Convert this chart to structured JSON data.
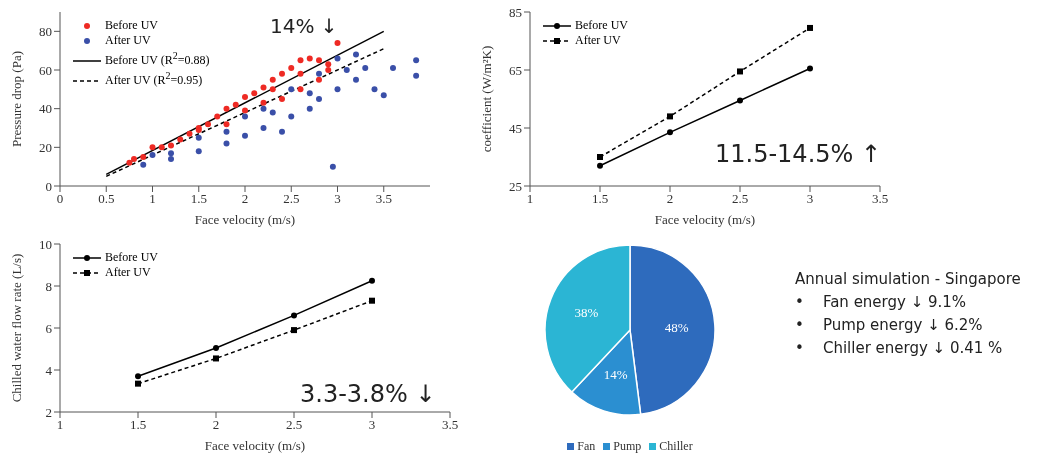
{
  "chart_data": [
    {
      "type": "scatter",
      "xlabel": "Face velocity (m/s)",
      "ylabel": "Pressure drop (Pa)",
      "xlim": [
        0,
        4
      ],
      "xticks": [
        0,
        0.5,
        1,
        1.5,
        2,
        2.5,
        3,
        3.5
      ],
      "ylim": [
        0,
        90
      ],
      "yticks": [
        0,
        20,
        40,
        60,
        80
      ],
      "legend": "top left",
      "annotations": [
        "14% ↓"
      ],
      "series": [
        {
          "name": "Before UV",
          "type": "scatter",
          "color": "#ee2a24",
          "marker": "circle",
          "x": [
            0.75,
            0.8,
            0.9,
            1.0,
            1.1,
            1.2,
            1.3,
            1.4,
            1.5,
            1.6,
            1.7,
            1.8,
            1.9,
            2.0,
            2.1,
            2.2,
            2.3,
            2.4,
            2.5,
            2.6,
            2.7,
            2.8,
            2.9,
            3.0,
            1.5,
            1.8,
            2.0,
            2.2,
            2.4,
            2.6,
            2.8,
            2.9,
            2.3,
            2.6
          ],
          "values": [
            12,
            14,
            15,
            20,
            20,
            21,
            24,
            27,
            30,
            32,
            36,
            40,
            42,
            46,
            48,
            51,
            55,
            58,
            61,
            65,
            66,
            65,
            63,
            74,
            29,
            32,
            39,
            43,
            45,
            50,
            55,
            60,
            50,
            58
          ]
        },
        {
          "name": "After UV",
          "type": "scatter",
          "color": "#3a4fa8",
          "marker": "circle",
          "x": [
            0.9,
            1.0,
            1.2,
            1.5,
            1.5,
            1.8,
            1.8,
            2.0,
            2.0,
            2.2,
            2.3,
            2.5,
            2.5,
            2.7,
            2.8,
            3.0,
            3.0,
            3.1,
            3.2,
            3.2,
            3.3,
            3.4,
            3.5,
            3.6,
            3.85,
            3.85,
            2.95,
            2.7,
            2.4,
            1.2,
            2.2,
            2.8
          ],
          "values": [
            11,
            16,
            14,
            25,
            18,
            22,
            28,
            36,
            26,
            30,
            38,
            50,
            36,
            48,
            45,
            66,
            50,
            60,
            68,
            55,
            61,
            50,
            47,
            61,
            65,
            57,
            10,
            40,
            28,
            17,
            40,
            58
          ]
        },
        {
          "name": "Before UV (R$^{2}$=0.88)",
          "type": "line",
          "color": "#000000",
          "marker": "none",
          "line_style": "solid",
          "x": [
            0.5,
            3.5
          ],
          "values": [
            6,
            80
          ]
        },
        {
          "name": "After UV (R$^{2}$=0.95)",
          "type": "line",
          "color": "#000000",
          "marker": "none",
          "line_style": "dashed",
          "x": [
            0.5,
            3.5
          ],
          "values": [
            5,
            71
          ]
        }
      ]
    },
    {
      "type": "line",
      "xlabel": "Face velocity (m/s)",
      "ylabel": "coefficient (W/m²K)",
      "xlim": [
        1,
        3.5
      ],
      "xticks": [
        1,
        1.5,
        2,
        2.5,
        3,
        3.5
      ],
      "ylim": [
        25,
        85
      ],
      "yticks": [
        25,
        45,
        65,
        85
      ],
      "legend": "top left",
      "annotations": [
        "11.5-14.5% ↑"
      ],
      "x": [
        1.5,
        2,
        2.5,
        3
      ],
      "series": [
        {
          "name": "Before UV",
          "color": "#000000",
          "marker": "circle",
          "line_style": "solid",
          "values": [
            32,
            43.5,
            54.5,
            65.5
          ]
        },
        {
          "name": "After UV",
          "color": "#000000",
          "marker": "square",
          "line_style": "dashed",
          "values": [
            35,
            49,
            64.5,
            79.5
          ]
        }
      ]
    },
    {
      "type": "line",
      "xlabel": "Face velocity (m/s)",
      "ylabel": "Chilled water flow rate (L/s)",
      "xlim": [
        1,
        3.5
      ],
      "xticks": [
        1,
        1.5,
        2,
        2.5,
        3,
        3.5
      ],
      "ylim": [
        2,
        10
      ],
      "yticks": [
        2,
        4,
        6,
        8,
        10
      ],
      "legend": "top left",
      "annotations": [
        "3.3-3.8% ↓"
      ],
      "x": [
        1.5,
        2,
        2.5,
        3
      ],
      "series": [
        {
          "name": "Before UV",
          "color": "#000000",
          "marker": "circle",
          "line_style": "solid",
          "values": [
            3.7,
            5.05,
            6.6,
            8.25
          ]
        },
        {
          "name": "After UV",
          "color": "#000000",
          "marker": "square",
          "line_style": "dashed",
          "values": [
            3.35,
            4.55,
            5.9,
            7.3
          ]
        }
      ]
    },
    {
      "type": "pie",
      "categories": [
        "Fan",
        "Pump",
        "Chiller"
      ],
      "values": [
        48,
        14,
        38
      ],
      "colors": [
        "#2e6bbd",
        "#2b8fd1",
        "#2bb5d4"
      ],
      "value_labels": [
        "48%",
        "14%",
        "38%"
      ],
      "legend": "bottom",
      "annotations": [
        "Annual simulation - Singapore",
        "•    Fan energy ↓ 9.1%",
        "•    Pump energy ↓ 6.2%",
        "•    Chiller energy ↓ 0.41 %"
      ]
    }
  ]
}
